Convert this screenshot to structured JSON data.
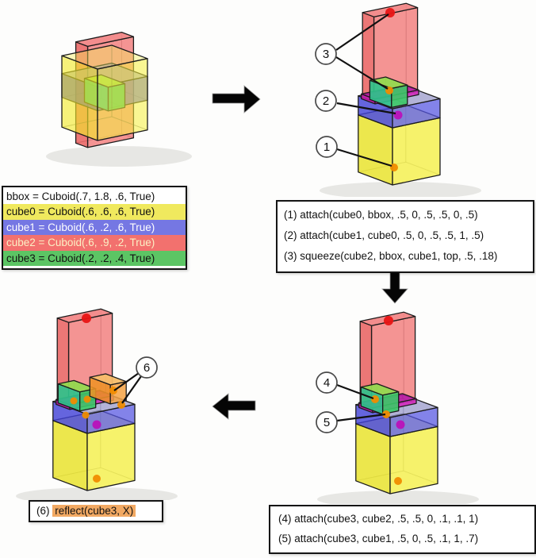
{
  "palette": {
    "hl_yellow": "#f0e95e",
    "hl_blue": "#7577e3",
    "hl_red": "#f2716e",
    "hl_green": "#5cc564",
    "hl_orange": "#f2a963",
    "cream": "#fbf0c4",
    "dot_red": "#e81414",
    "dot_orange": "#f08c00",
    "dot_magenta": "#b911b9",
    "cuboid_yellow": "#f0e93a",
    "cuboid_blue": "#4747dd",
    "cuboid_red": "#ec5a5a",
    "cuboid_green": "#3bc97a",
    "cuboid_orange": "#f29c38",
    "cuboid_magenta": "#cb15ae"
  },
  "declarations": {
    "lines": [
      {
        "text": "bbox = Cuboid(.7, 1.8, .6, True)",
        "highlight": "none"
      },
      {
        "text": "cube0 = Cuboid(.6, .6, .6, True)",
        "highlight": "yellow"
      },
      {
        "text": "cube1 = Cuboid(.6, .2, .6, True)",
        "highlight": "blue"
      },
      {
        "text": "cube2 = Cuboid(.6, .9, .2, True)",
        "highlight": "red"
      },
      {
        "text": "cube3 = Cuboid(.2, .2, .4, True)",
        "highlight": "green"
      }
    ]
  },
  "step_box_right": {
    "lines": [
      "(1) attach(cube0, bbox, .5, 0, .5, .5, 0, .5)",
      "(2) attach(cube1, cube0, .5, 0, .5, .5, 1, .5)",
      "(3) squeeze(cube2, bbox, cube1, top, .5, .18)"
    ]
  },
  "step_box_bottom": {
    "lines": [
      "(4) attach(cube3, cube2, .5, .5, 0, .1, .1, 1)",
      "(5) attach(cube3, cube1, .5, 0, .5, .1, 1, .7)"
    ]
  },
  "reflect_box": {
    "prefix": "(6) ",
    "code": "reflect(cube3, X)"
  },
  "callouts": {
    "c1": "1",
    "c2": "2",
    "c3": "3",
    "c4": "4",
    "c5": "5",
    "c6": "6"
  }
}
